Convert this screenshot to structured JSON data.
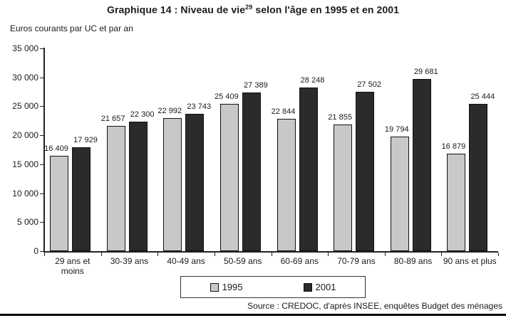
{
  "chart_data": {
    "type": "bar",
    "title": {
      "main": "Graphique 14 : Niveau de vie",
      "sup": "29",
      "rest": " selon l'âge en 1995 et en 2001"
    },
    "ylabel": "Euros courants par UC et par an",
    "categories": [
      "29 ans et moins",
      "30-39 ans",
      "40-49 ans",
      "50-59 ans",
      "60-69 ans",
      "70-79 ans",
      "80-89 ans",
      "90 ans et plus"
    ],
    "series": [
      {
        "name": "1995",
        "color": "#c8c8c8",
        "values": [
          16409,
          21657,
          22992,
          25409,
          22844,
          21855,
          19794,
          16879
        ]
      },
      {
        "name": "2001",
        "color": "#2b2b2b",
        "values": [
          17929,
          22300,
          23743,
          27389,
          28248,
          27502,
          29681,
          25444
        ]
      }
    ],
    "ylim": [
      0,
      35000
    ],
    "ytick_step": 5000,
    "yticks": [
      "0",
      "5 000",
      "10 000",
      "15 000",
      "20 000",
      "25 000",
      "30 000",
      "35 000"
    ],
    "grid": false,
    "legend_position": "bottom-center",
    "source": "Source : CREDOC, d'après INSEE, enquêtes Budget des ménages"
  }
}
